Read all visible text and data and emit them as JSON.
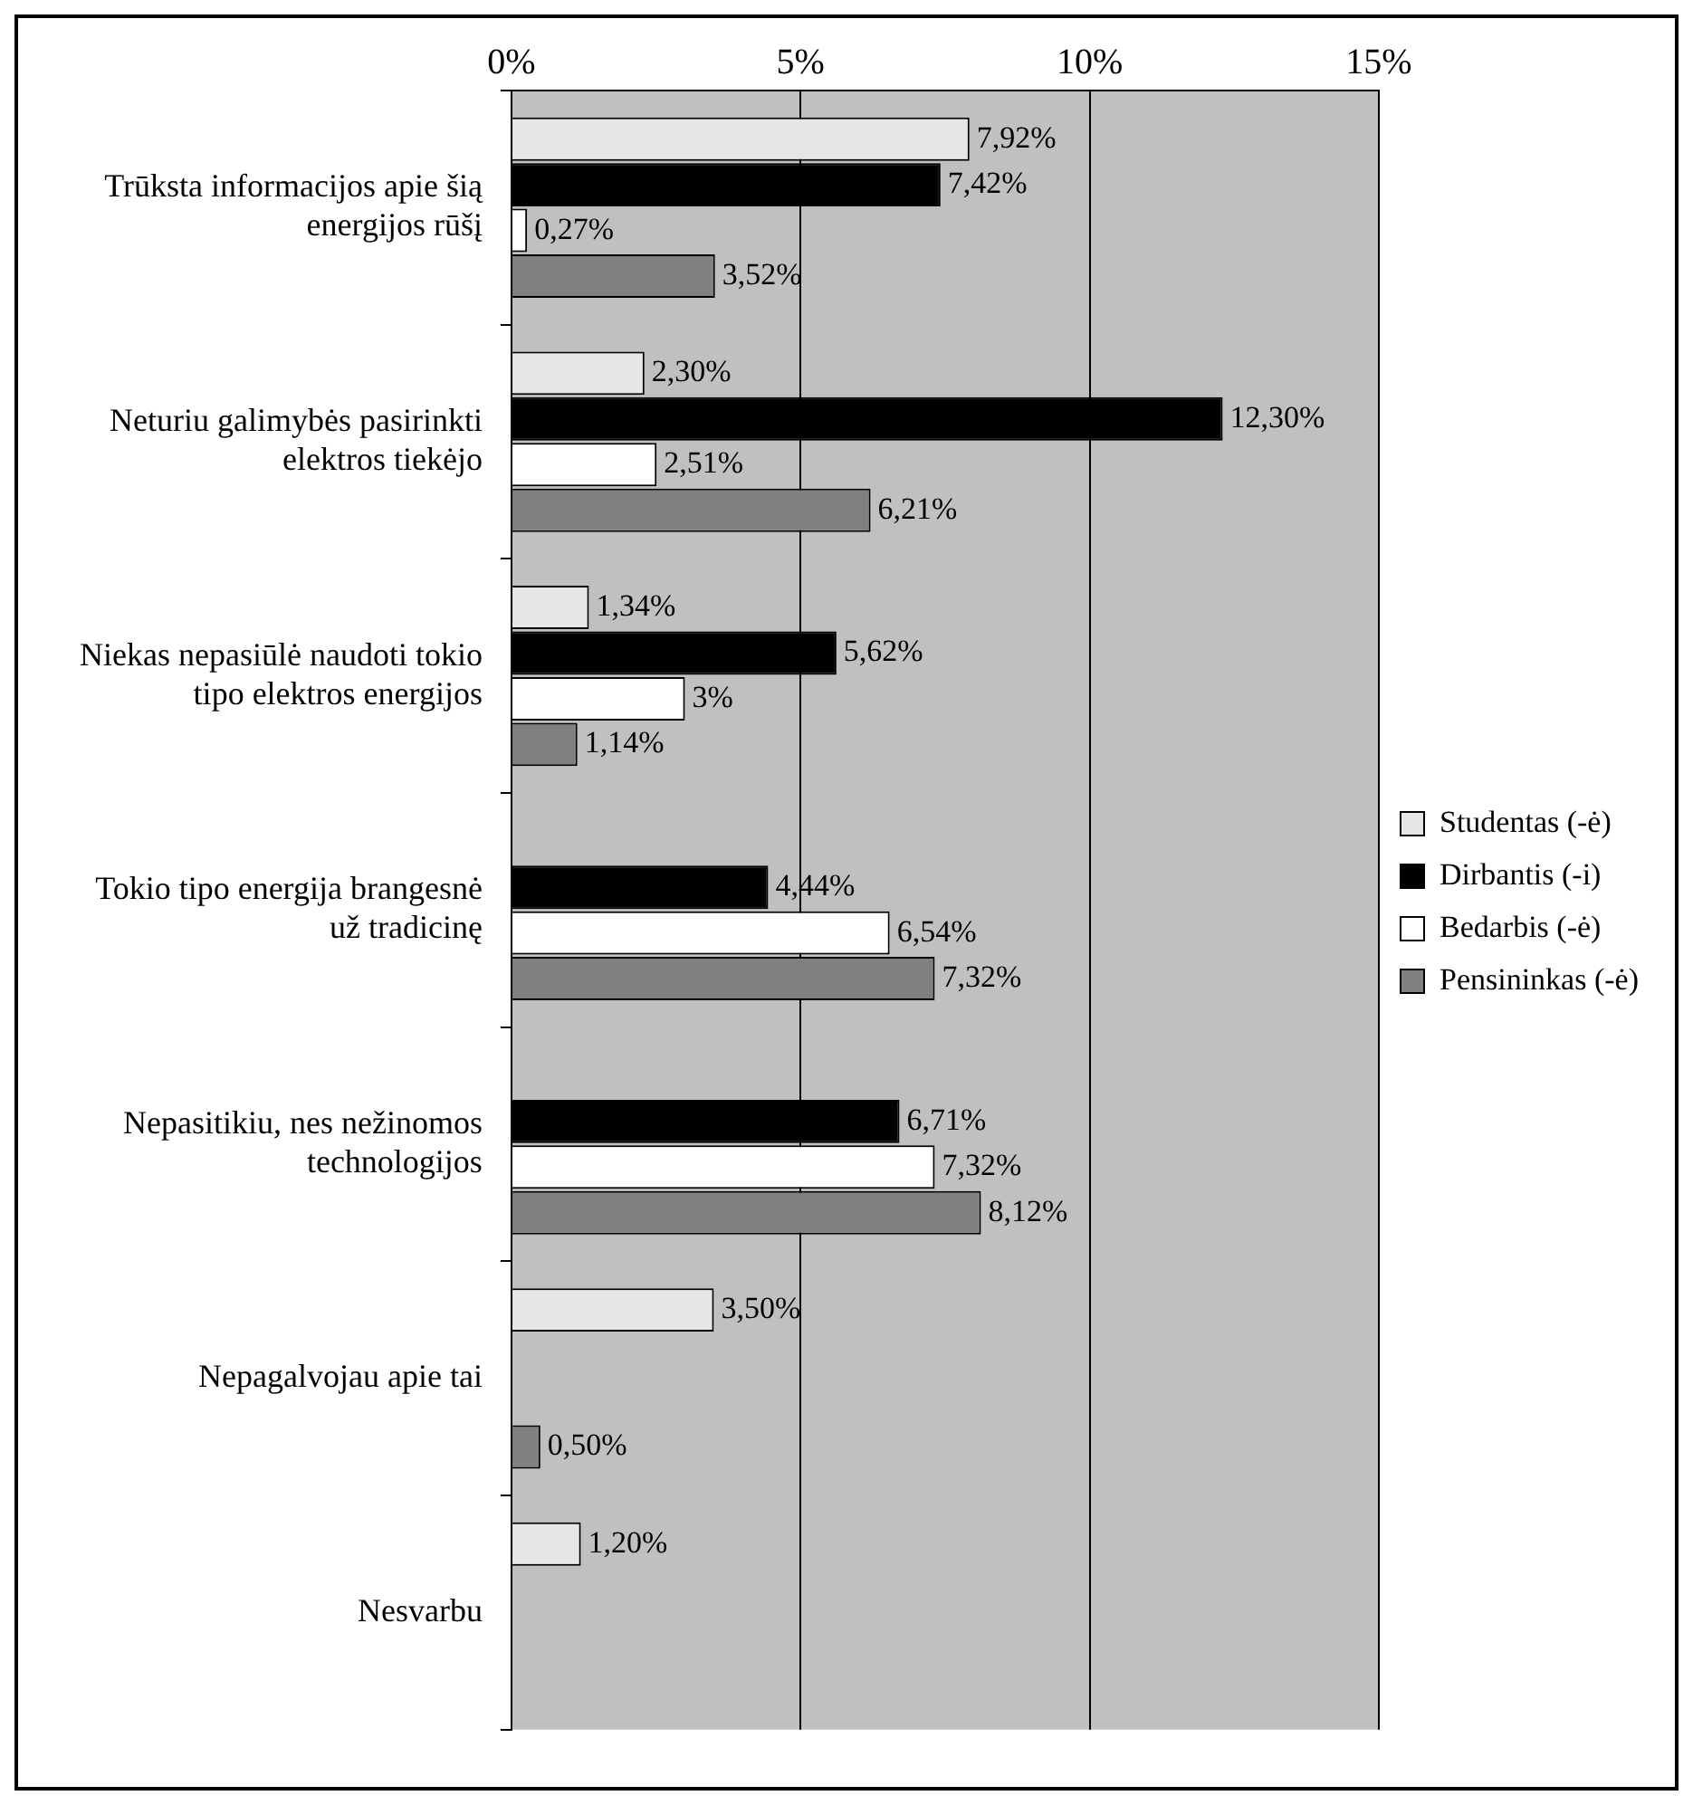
{
  "chart_data": {
    "type": "bar",
    "orientation": "horizontal",
    "categories": [
      "Trūksta informacijos apie šią energijos rūšį",
      "Neturiu galimybės pasirinkti elektros tiekėjo",
      "Niekas nepasiūlė naudoti tokio tipo elektros energijos",
      "Tokio tipo energija brangesnė už tradicinę",
      "Nepasitikiu, nes nežinomos technologijos",
      "Nepagalvojau apie tai",
      "Nesvarbu"
    ],
    "series": [
      {
        "name": "Studentas (-ė)",
        "color": "#e6e6e6",
        "values": [
          7.92,
          2.3,
          1.34,
          null,
          null,
          3.5,
          1.2
        ],
        "value_labels": [
          "7,92%",
          "2,30%",
          "1,34%",
          null,
          null,
          "3,50%",
          "1,20%"
        ]
      },
      {
        "name": "Dirbantis (-i)",
        "color": "#000000",
        "values": [
          7.42,
          12.3,
          5.62,
          4.44,
          6.71,
          null,
          null
        ],
        "value_labels": [
          "7,42%",
          "12,30%",
          "5,62%",
          "4,44%",
          "6,71%",
          null,
          null
        ]
      },
      {
        "name": "Bedarbis (-ė)",
        "color": "#ffffff",
        "values": [
          0.27,
          2.51,
          3,
          6.54,
          7.32,
          null,
          null
        ],
        "value_labels": [
          "0,27%",
          "2,51%",
          "3%",
          "6,54%",
          "7,32%",
          null,
          null
        ]
      },
      {
        "name": "Pensininkas (-ė)",
        "color": "#808080",
        "values": [
          3.52,
          6.21,
          1.14,
          7.32,
          8.12,
          0.5,
          null
        ],
        "value_labels": [
          "3,52%",
          "6,21%",
          "1,14%",
          "7,32%",
          "8,12%",
          "0,50%",
          null
        ]
      }
    ],
    "xlim": [
      0,
      15
    ],
    "xticks": [
      {
        "value": 0,
        "label": "0%"
      },
      {
        "value": 5,
        "label": "5%"
      },
      {
        "value": 10,
        "label": "10%"
      },
      {
        "value": 15,
        "label": "15%"
      }
    ],
    "grid": "x",
    "legend": "right"
  }
}
